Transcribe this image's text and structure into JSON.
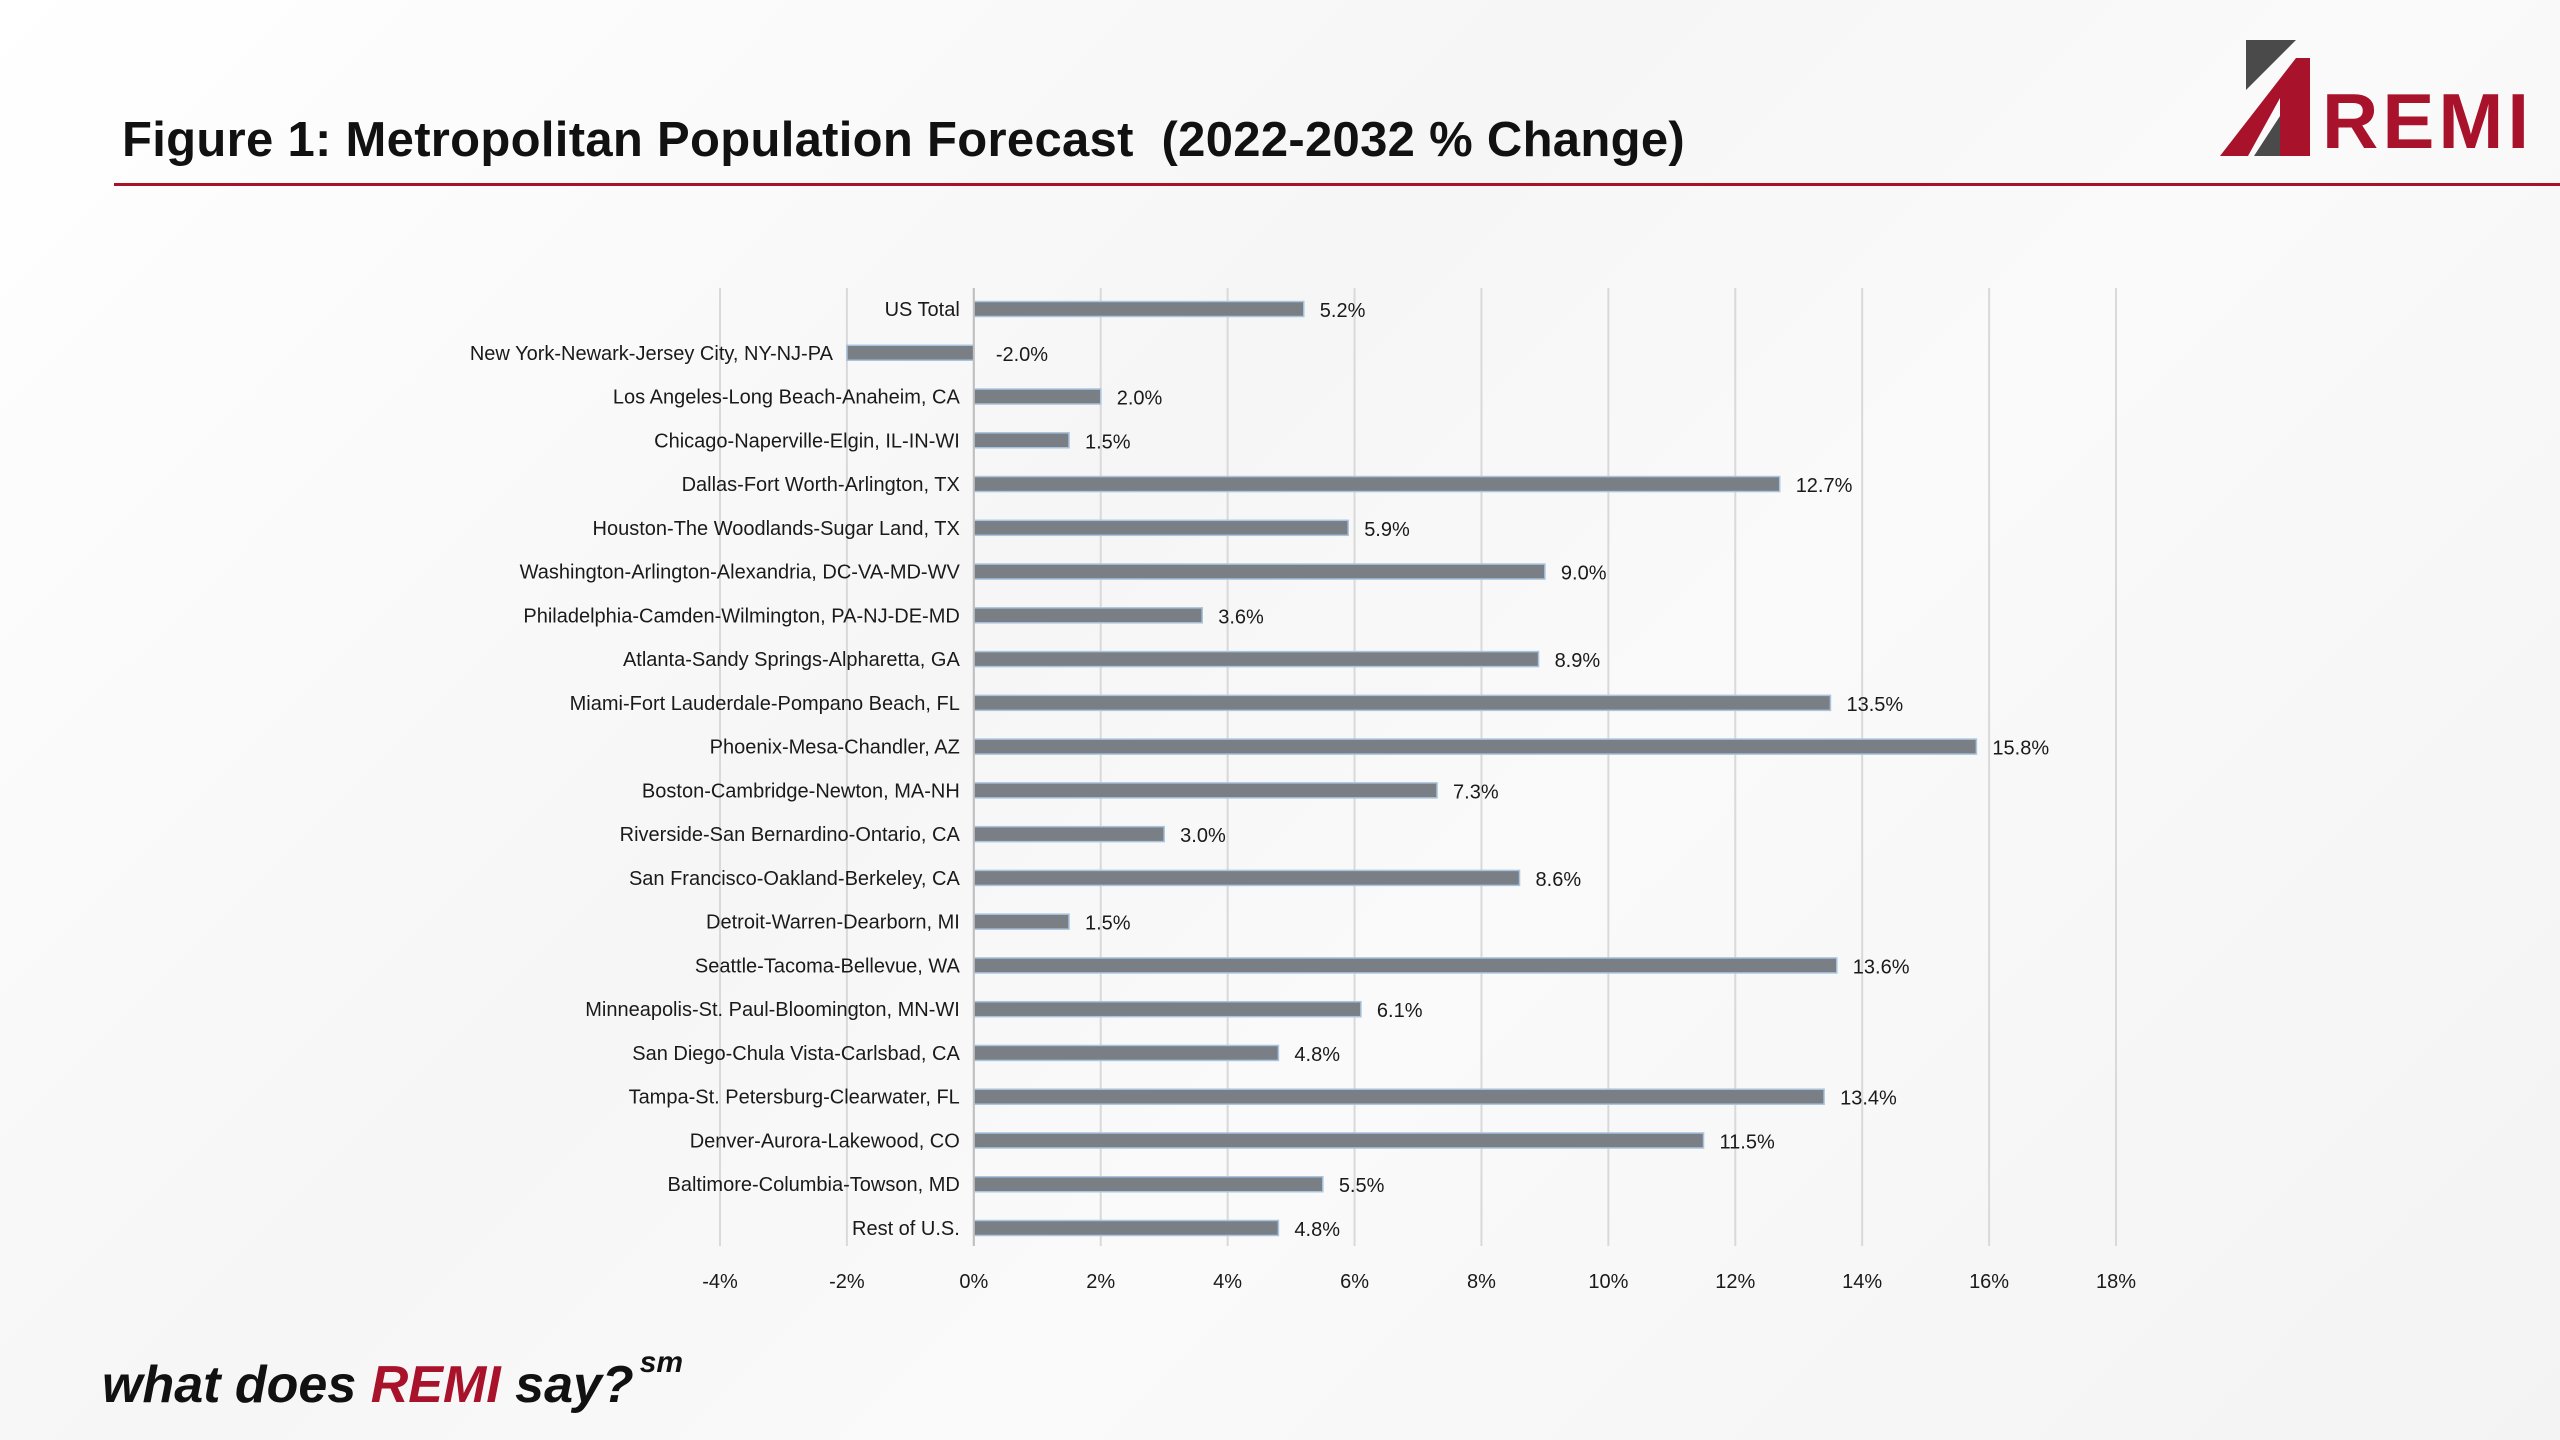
{
  "slide": {
    "title": "Figure 1: Metropolitan Population Forecast  (2022-2032 % Change)",
    "logo_text": "REMI",
    "tagline_prefix": "what does ",
    "tagline_brand": "REMI",
    "tagline_suffix": " say?",
    "tagline_mark": "sm",
    "colors": {
      "accent": "#a8122b",
      "bar": "#7a7f85",
      "bar_edge": "#a9c4de",
      "grid": "#d9d9d9"
    }
  },
  "chart_data": {
    "type": "bar",
    "orientation": "horizontal",
    "title": "Figure 1: Metropolitan Population Forecast  (2022-2032 % Change)",
    "xlabel": "",
    "ylabel": "",
    "xlim": [
      -4,
      18
    ],
    "xticks": [
      -4,
      -2,
      0,
      2,
      4,
      6,
      8,
      10,
      12,
      14,
      16,
      18
    ],
    "xtick_labels": [
      "-4%",
      "-2%",
      "0%",
      "2%",
      "4%",
      "6%",
      "8%",
      "10%",
      "12%",
      "14%",
      "16%",
      "18%"
    ],
    "grid": "vertical",
    "categories": [
      "US Total",
      "New York-Newark-Jersey City, NY-NJ-PA",
      "Los Angeles-Long Beach-Anaheim, CA",
      "Chicago-Naperville-Elgin, IL-IN-WI",
      "Dallas-Fort Worth-Arlington, TX",
      "Houston-The Woodlands-Sugar Land, TX",
      "Washington-Arlington-Alexandria, DC-VA-MD-WV",
      "Philadelphia-Camden-Wilmington, PA-NJ-DE-MD",
      "Atlanta-Sandy Springs-Alpharetta, GA",
      "Miami-Fort Lauderdale-Pompano Beach, FL",
      "Phoenix-Mesa-Chandler, AZ",
      "Boston-Cambridge-Newton, MA-NH",
      "Riverside-San Bernardino-Ontario, CA",
      "San Francisco-Oakland-Berkeley, CA",
      "Detroit-Warren-Dearborn, MI",
      "Seattle-Tacoma-Bellevue, WA",
      "Minneapolis-St. Paul-Bloomington, MN-WI",
      "San Diego-Chula Vista-Carlsbad, CA",
      "Tampa-St. Petersburg-Clearwater, FL",
      "Denver-Aurora-Lakewood, CO",
      "Baltimore-Columbia-Towson, MD",
      "Rest of U.S."
    ],
    "values": [
      5.2,
      -2.0,
      2.0,
      1.5,
      12.7,
      5.9,
      9.0,
      3.6,
      8.9,
      13.5,
      15.8,
      7.3,
      3.0,
      8.6,
      1.5,
      13.6,
      6.1,
      4.8,
      13.4,
      11.5,
      5.5,
      4.8
    ],
    "value_labels": [
      "5.2%",
      "-2.0%",
      "2.0%",
      "1.5%",
      "12.7%",
      "5.9%",
      "9.0%",
      "3.6%",
      "8.9%",
      "13.5%",
      "15.8%",
      "7.3%",
      "3.0%",
      "8.6%",
      "1.5%",
      "13.6%",
      "6.1%",
      "4.8%",
      "13.4%",
      "11.5%",
      "5.5%",
      "4.8%"
    ]
  }
}
